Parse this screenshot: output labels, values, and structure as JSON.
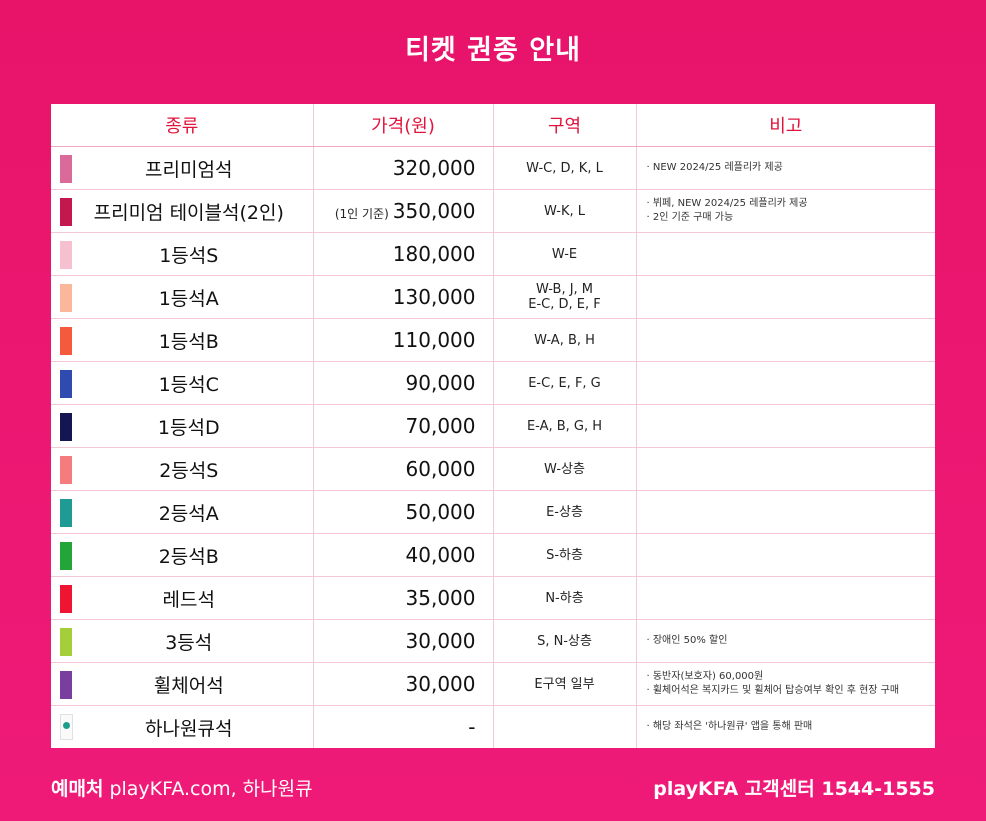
{
  "title": "티켓 권종 안내",
  "headers": [
    "종류",
    "가격(원)",
    "구역",
    "비고"
  ],
  "rows": [
    {
      "name": "프리미엄석",
      "color": "#d96a9a",
      "price": "320,000",
      "price_note": "",
      "zone": [
        "W-C, D, K, L"
      ],
      "notes": [
        "· NEW 2024/25 레플리카 제공"
      ]
    },
    {
      "name": "프리미엄 테이블석(2인)",
      "color": "#c4174f",
      "price": "350,000",
      "price_note": "(1인 기준)",
      "zone": [
        "W-K, L"
      ],
      "notes": [
        "· 뷔페, NEW 2024/25 레플리카 제공",
        "· 2인 기준 구매 가능"
      ]
    },
    {
      "name": "1등석S",
      "color": "#f7c0d1",
      "price": "180,000",
      "price_note": "",
      "zone": [
        "W-E"
      ],
      "notes": []
    },
    {
      "name": "1등석A",
      "color": "#fbb79a",
      "price": "130,000",
      "price_note": "",
      "zone": [
        "W-B, J, M",
        "E-C, D, E, F"
      ],
      "notes": []
    },
    {
      "name": "1등석B",
      "color": "#f55a3e",
      "price": "110,000",
      "price_note": "",
      "zone": [
        "W-A, B, H"
      ],
      "notes": []
    },
    {
      "name": "1등석C",
      "color": "#2f4bb0",
      "price": "90,000",
      "price_note": "",
      "zone": [
        "E-C, E, F, G"
      ],
      "notes": []
    },
    {
      "name": "1등석D",
      "color": "#141652",
      "price": "70,000",
      "price_note": "",
      "zone": [
        "E-A, B, G, H"
      ],
      "notes": []
    },
    {
      "name": "2등석S",
      "color": "#f47c7c",
      "price": "60,000",
      "price_note": "",
      "zone": [
        "W-상층"
      ],
      "notes": []
    },
    {
      "name": "2등석A",
      "color": "#1f9a95",
      "price": "50,000",
      "price_note": "",
      "zone": [
        "E-상층"
      ],
      "notes": []
    },
    {
      "name": "2등석B",
      "color": "#23a53a",
      "price": "40,000",
      "price_note": "",
      "zone": [
        "S-하층"
      ],
      "notes": []
    },
    {
      "name": "레드석",
      "color": "#ef1431",
      "price": "35,000",
      "price_note": "",
      "zone": [
        "N-하층"
      ],
      "notes": []
    },
    {
      "name": "3등석",
      "color": "#a4cf3b",
      "price": "30,000",
      "price_note": "",
      "zone": [
        "S, N-상층"
      ],
      "notes": [
        "· 장애인 50% 할인"
      ]
    },
    {
      "name": "휠체어석",
      "color": "#7a3f9e",
      "price": "30,000",
      "price_note": "",
      "zone": [
        "E구역 일부"
      ],
      "notes": [
        "· 동반자(보호자) 60,000원",
        "· 휠체어석은 복지카드 및 휠체어 탑승여부 확인 후 현장 구매"
      ]
    },
    {
      "name": "하나원큐석",
      "color": "hana-logo",
      "price": "-",
      "price_note": "",
      "zone": [],
      "notes": [
        "· 해당 좌석은 '하나원큐' 앱을 통해 판매"
      ]
    }
  ],
  "footer": {
    "left_label": "예매처",
    "left_text": "playKFA.com, 하나원큐",
    "right_text": "playKFA 고객센터 1544-1555"
  }
}
